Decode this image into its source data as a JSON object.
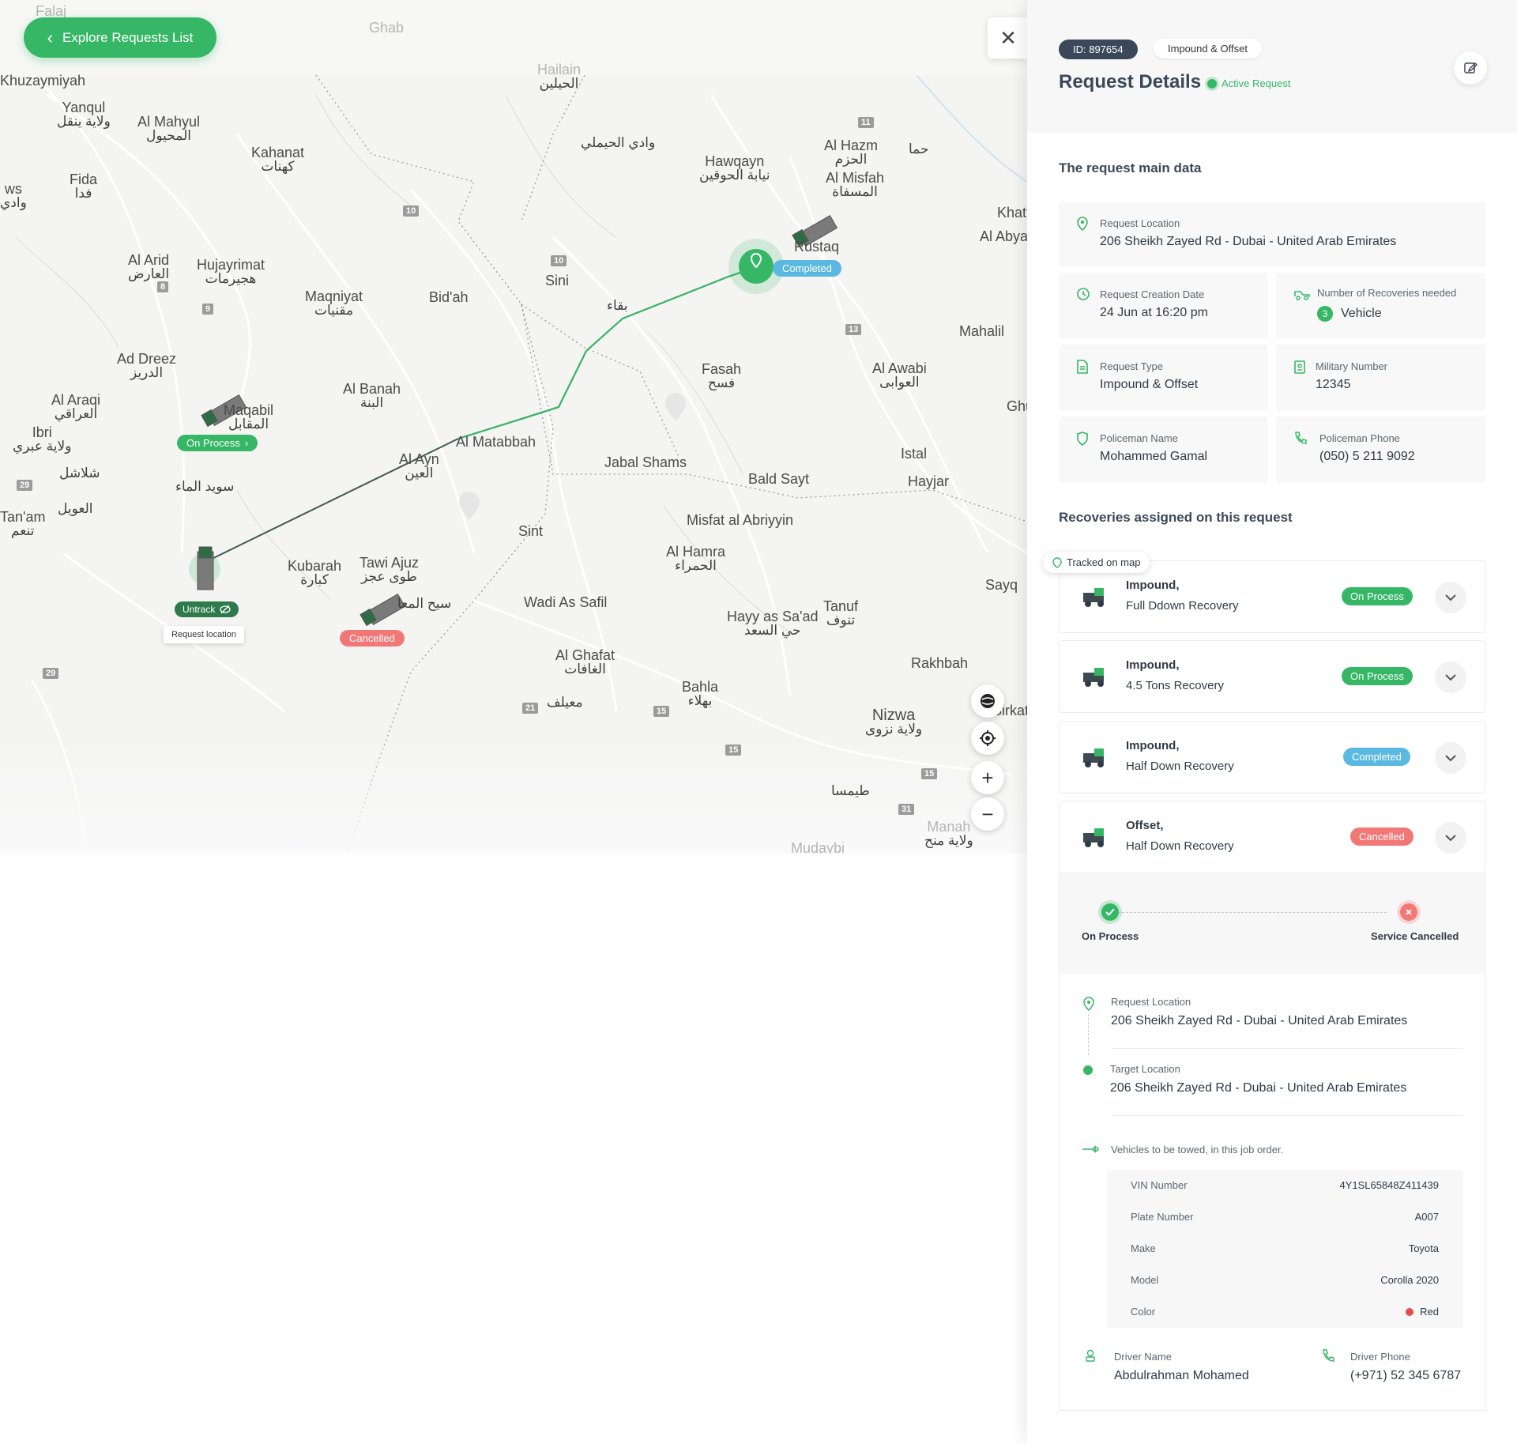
{
  "header": {
    "back_label": "Explore Requests List",
    "request_id": "ID: 897654",
    "request_type_chip": "Impound & Offset",
    "title": "Request Details",
    "status": "Active Request"
  },
  "map": {
    "places": [
      {
        "name": "Falaj",
        "ar": ""
      },
      {
        "name": "Ghab",
        "ar": ""
      },
      {
        "name": "Hailain",
        "ar": "الحيلين"
      },
      {
        "name": "Khuzaymiyah",
        "ar": ""
      },
      {
        "name": "Yanqul",
        "ar": "ولاية ينقل"
      },
      {
        "name": "Al Mahyul",
        "ar": "المحيول"
      },
      {
        "name": "Kahanat",
        "ar": "كهنات"
      },
      {
        "name": "Fida",
        "ar": "فدا"
      },
      {
        "name": "",
        "ar": "وادي الحيملي"
      },
      {
        "name": "Hawqayn",
        "ar": "نيابة الحوقين"
      },
      {
        "name": "Al Hazm",
        "ar": "الحزم"
      },
      {
        "name": "Al Misfah",
        "ar": "المسفاة"
      },
      {
        "name": "",
        "ar": "حما"
      },
      {
        "name": "Khat",
        "ar": ""
      },
      {
        "name": "Al Abya",
        "ar": ""
      },
      {
        "name": "Al Arid",
        "ar": "العارض"
      },
      {
        "name": "Hujayrimat",
        "ar": "هجيرمات"
      },
      {
        "name": "Maqniyat",
        "ar": "مقنيات"
      },
      {
        "name": "Bid'ah",
        "ar": ""
      },
      {
        "name": "Sini",
        "ar": ""
      },
      {
        "name": "",
        "ar": "بقاء"
      },
      {
        "name": "Rustaq",
        "ar": ""
      },
      {
        "name": "Mahalil",
        "ar": ""
      },
      {
        "name": "Ad Dreez",
        "ar": "الدريز"
      },
      {
        "name": "Al Banah",
        "ar": "البنة"
      },
      {
        "name": "Fasah",
        "ar": "فسح"
      },
      {
        "name": "Al Awabi",
        "ar": "العوابى"
      },
      {
        "name": "Al Araqi",
        "ar": "العراقي"
      },
      {
        "name": "Maqabil",
        "ar": "المقابل"
      },
      {
        "name": "Ibri",
        "ar": "ولاية عبري"
      },
      {
        "name": "Al Matabbah",
        "ar": ""
      },
      {
        "name": "Al Ayn",
        "ar": "العين"
      },
      {
        "name": "Jabal Shams",
        "ar": ""
      },
      {
        "name": "Bald Sayt",
        "ar": ""
      },
      {
        "name": "Istal",
        "ar": ""
      },
      {
        "name": "Hayjar",
        "ar": ""
      },
      {
        "name": "",
        "ar": "شلاشل"
      },
      {
        "name": "",
        "ar": "سويد الماء"
      },
      {
        "name": "Tan'am",
        "ar": "تنعم"
      },
      {
        "name": "",
        "ar": "العويل"
      },
      {
        "name": "Sint",
        "ar": ""
      },
      {
        "name": "Misfat al Abriyyin",
        "ar": ""
      },
      {
        "name": "Al Hamra",
        "ar": "الحمراء"
      },
      {
        "name": "Kubarah",
        "ar": "كبارة"
      },
      {
        "name": "Tawi Ajuz",
        "ar": "طوى عجز"
      },
      {
        "name": "",
        "ar": "سيح المعا"
      },
      {
        "name": "Wadi As Safil",
        "ar": ""
      },
      {
        "name": "Hayy as Sa'ad",
        "ar": "حي السعد"
      },
      {
        "name": "Tanuf",
        "ar": "تنوف"
      },
      {
        "name": "Sayq",
        "ar": ""
      },
      {
        "name": "Al Ghafat",
        "ar": "الغافات"
      },
      {
        "name": "Rakhbah",
        "ar": ""
      },
      {
        "name": "Bahla",
        "ar": "بهلاء"
      },
      {
        "name": "",
        "ar": "معيلف"
      },
      {
        "name": "Nizwa",
        "ar": "ولاية نزوى"
      },
      {
        "name": "Sirkat",
        "ar": ""
      },
      {
        "name": "",
        "ar": "طيمسا"
      },
      {
        "name": "Manah",
        "ar": "ولاية منح"
      },
      {
        "name": "Mudaybi",
        "ar": ""
      },
      {
        "name": "Ghu",
        "ar": ""
      },
      {
        "name": "ws",
        "ar": "وادي"
      }
    ],
    "shields": [
      "11",
      "10",
      "10",
      "8",
      "9",
      "13",
      "29",
      "29",
      "21",
      "15",
      "15",
      "15",
      "31"
    ],
    "markers": {
      "completed": "Completed",
      "on_process": "On Process",
      "untrack": "Untrack",
      "request_location": "Request location",
      "cancelled": "Cancelled"
    },
    "controls": {
      "zoom_in": "+",
      "zoom_out": "−"
    }
  },
  "main_data": {
    "section_title": "The request main data",
    "request_location_label": "Request Location",
    "request_location": "206 Sheikh Zayed Rd - Dubai - United Arab Emirates",
    "creation_date_label": "Request Creation Date",
    "creation_date": "24 Jun at 16:20 pm",
    "recoveries_needed_label": "Number of Recoveries needed",
    "recoveries_needed_count": "3",
    "recoveries_needed_unit": "Vehicle",
    "request_type_label": "Request Type",
    "request_type": "Impound & Offset",
    "military_number_label": "Military Number",
    "military_number": "12345",
    "policeman_name_label": "Policeman Name",
    "policeman_name": "Mohammed Gamal",
    "policeman_phone_label": "Policeman Phone",
    "policeman_phone": "(050) 5 211 9092"
  },
  "recoveries": {
    "section_title": "Recoveries assigned on this request",
    "tracked_label": "Tracked on map",
    "items": [
      {
        "type": "Impound,",
        "name": "Full Ddown Recovery",
        "status": "On Process",
        "status_color": "#35b765"
      },
      {
        "type": "Impound,",
        "name": "4.5 Tons Recovery",
        "status": "On Process",
        "status_color": "#35b765"
      },
      {
        "type": "Impound,",
        "name": "Half Down Recovery",
        "status": "Completed",
        "status_color": "#5bb8e0"
      },
      {
        "type": "Offset,",
        "name": "Half Down Recovery",
        "status": "Cancelled",
        "status_color": "#f27878"
      }
    ]
  },
  "expanded": {
    "step_start": "On Process",
    "step_end": "Service Cancelled",
    "request_location_label": "Request Location",
    "request_location": "206 Sheikh Zayed Rd - Dubai - United Arab Emirates",
    "target_location_label": "Target Location",
    "target_location": "206 Sheikh Zayed Rd - Dubai - United Arab Emirates",
    "vehicles_note": "Vehicles to be towed, in this job order.",
    "vehicle": [
      {
        "key": "VIN Number",
        "value": "4Y1SL65848Z411439"
      },
      {
        "key": "Plate Number",
        "value": "A007"
      },
      {
        "key": "Make",
        "value": "Toyota"
      },
      {
        "key": "Model",
        "value": "Corolla 2020"
      },
      {
        "key": "Color",
        "value": "Red"
      }
    ],
    "driver_name_label": "Driver Name",
    "driver_name": "Abdulrahman Mohamed",
    "driver_phone_label": "Driver Phone",
    "driver_phone": "(+971) 52 345 6787"
  },
  "colors": {
    "accent": "#35b765",
    "completed": "#5bb8e0",
    "cancelled": "#f27878",
    "dark": "#3b4859"
  }
}
